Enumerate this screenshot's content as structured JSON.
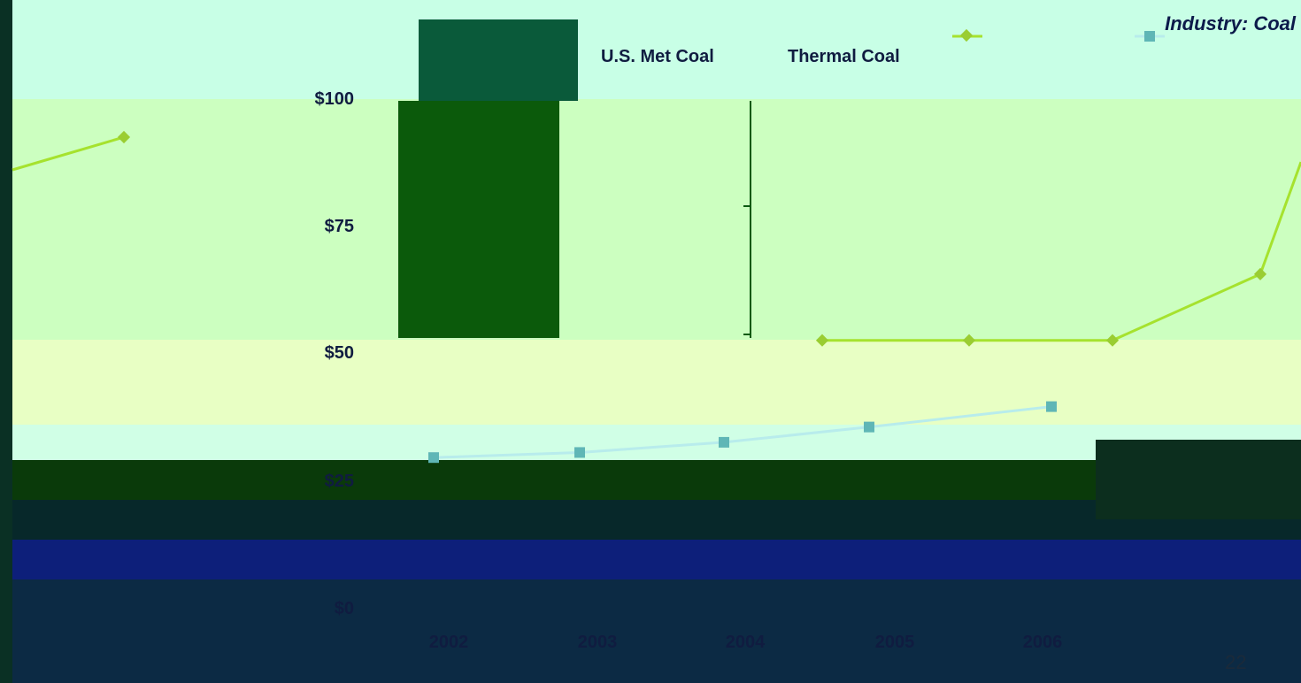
{
  "slide": {
    "title": "Industry: Coal",
    "page_number": "22"
  },
  "colors": {
    "met_line": "#a6e22e",
    "met_marker": "#9acd32",
    "thermal_line": "#b8ecec",
    "thermal_marker": "#5fb6b6",
    "axis": "#0a5a10",
    "axis_text": "#101c40",
    "block_dark_green": "#0b5a0b",
    "block_teal": "#0a5a3a"
  },
  "chart_data": {
    "type": "line",
    "title": "",
    "xlabel": "",
    "ylabel": "",
    "categories": [
      "2002",
      "2003",
      "2004",
      "2005",
      "2006"
    ],
    "ylim": [
      0,
      100
    ],
    "y_ticks": [
      "$0",
      "$25",
      "$50",
      "$75",
      "$100"
    ],
    "legend": {
      "position": "top",
      "entries": [
        "U.S. Met Coal",
        "Thermal Coal"
      ]
    },
    "series": [
      {
        "name": "U.S. Met Coal",
        "values": [
          53,
          53,
          53,
          66,
          88
        ]
      },
      {
        "name": "Thermal Coal",
        "values": [
          30,
          31,
          33,
          36,
          40
        ]
      }
    ]
  }
}
